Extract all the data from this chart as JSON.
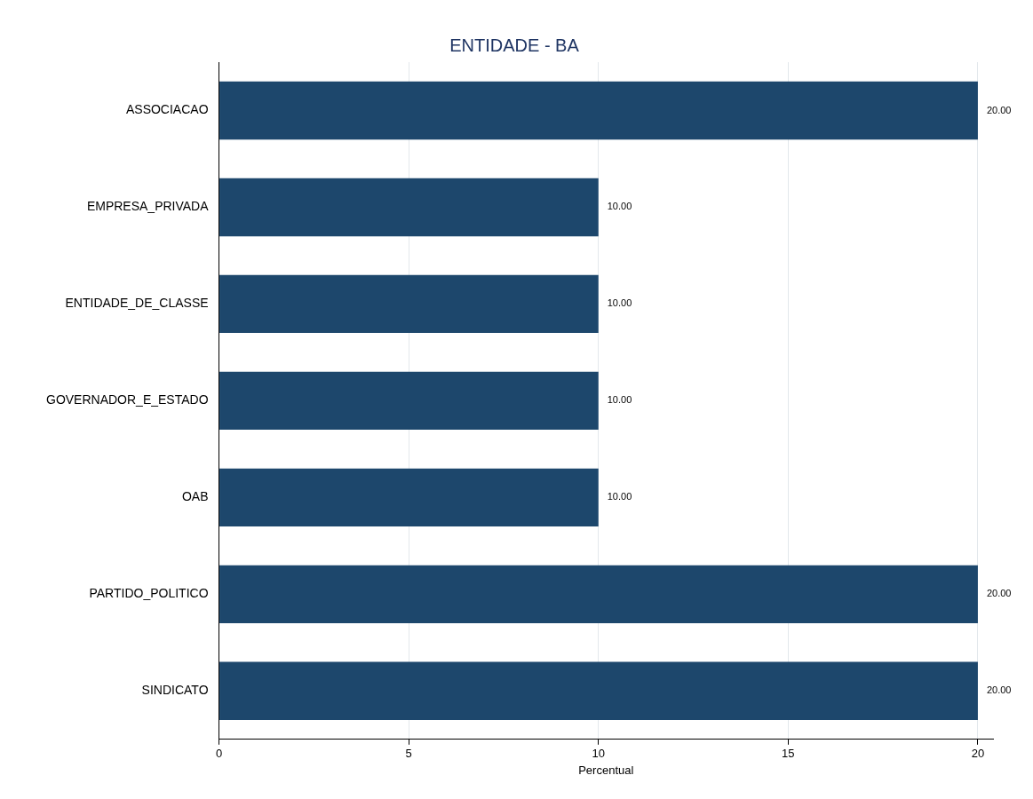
{
  "chart_data": {
    "type": "bar",
    "orientation": "horizontal",
    "title": "ENTIDADE - BA",
    "xlabel": "Percentual",
    "categories": [
      "ASSOCIACAO",
      "EMPRESA_PRIVADA",
      "ENTIDADE_DE_CLASSE",
      "GOVERNADOR_E_ESTADO",
      "OAB",
      "PARTIDO_POLITICO",
      "SINDICATO"
    ],
    "values": [
      20,
      10,
      10,
      10,
      10,
      20,
      20
    ],
    "value_labels": [
      "20.00",
      "10.00",
      "10.00",
      "10.00",
      "10.00",
      "20.00",
      "20.00"
    ],
    "color": "#1d476c",
    "xlim": [
      0,
      20.4
    ],
    "xticks": [
      0,
      5,
      10,
      15,
      20
    ],
    "grid": "x",
    "legend": false
  }
}
